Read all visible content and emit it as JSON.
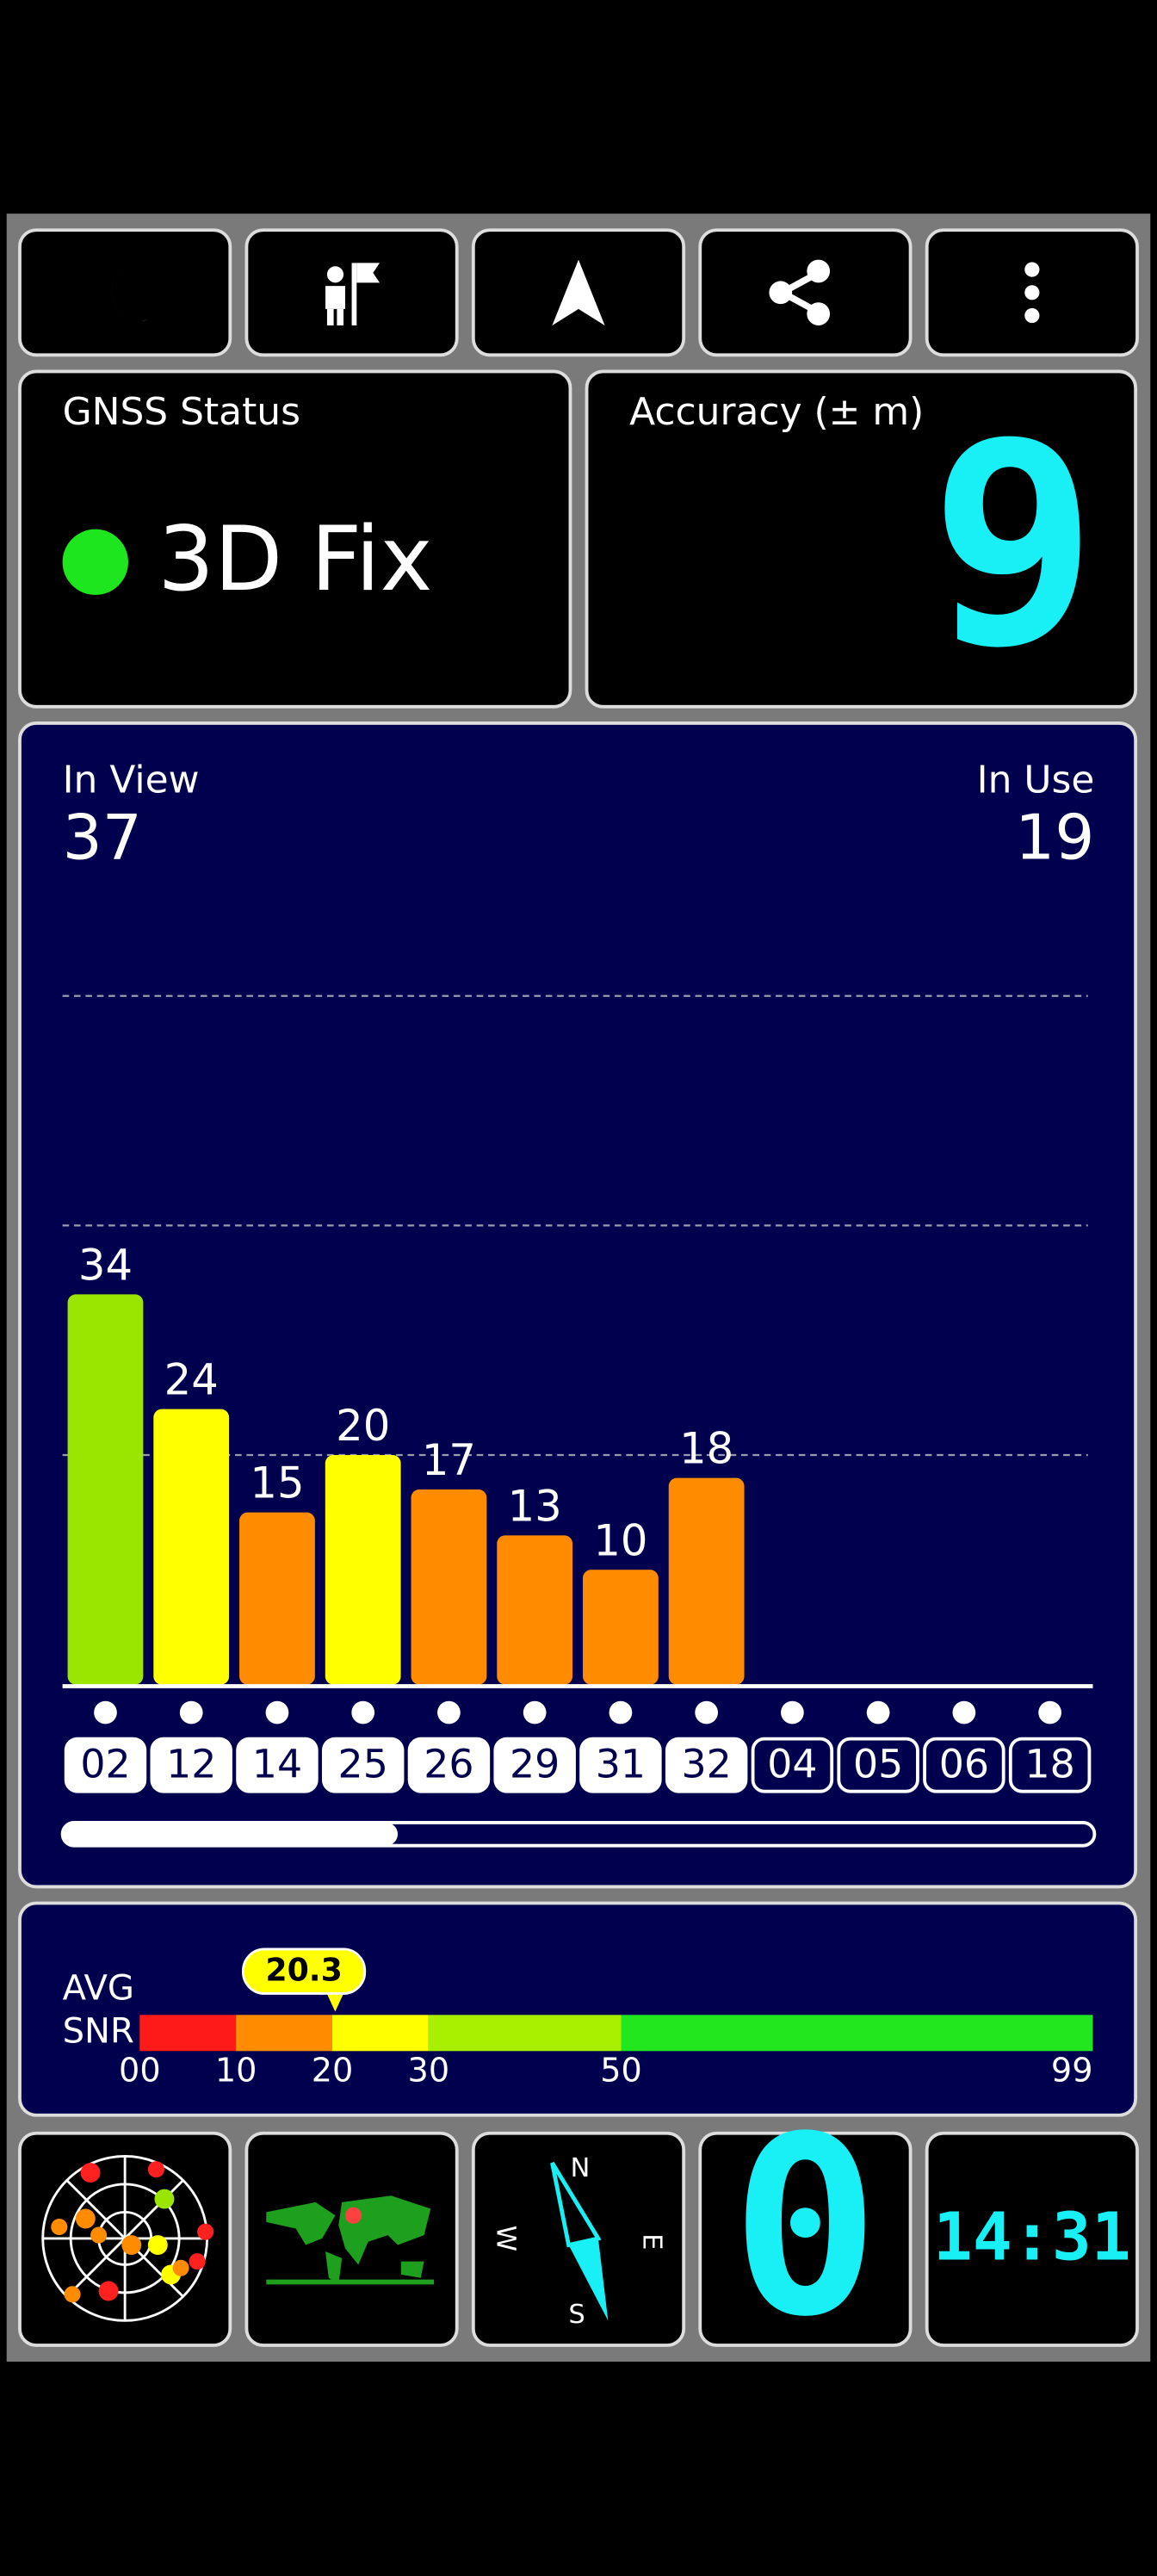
{
  "status": {
    "title": "GNSS Status",
    "fix": "3D Fix"
  },
  "accuracy": {
    "title": "Accuracy (± m)",
    "value": 9
  },
  "chart_data": {
    "type": "bar",
    "in_view_label": "In View",
    "in_view": 37,
    "in_use_label": "In Use",
    "in_use": 19,
    "categories": [
      "02",
      "12",
      "14",
      "25",
      "26",
      "29",
      "31",
      "32",
      "04",
      "05",
      "06",
      "18"
    ],
    "values": [
      34,
      24,
      15,
      20,
      17,
      13,
      10,
      18,
      0,
      0,
      0,
      0
    ],
    "colors": [
      "#9be600",
      "#ffff00",
      "#ff8c00",
      "#ffff00",
      "#ff8c00",
      "#ff8c00",
      "#ff8c00",
      "#ff8c00",
      "#ff1a1a",
      "#ff1a1a",
      "#ff1a1a",
      "#ff1a1a"
    ],
    "used": [
      true,
      true,
      true,
      true,
      true,
      true,
      true,
      true,
      false,
      false,
      false,
      false
    ],
    "ylim": [
      0,
      60
    ],
    "yticks": [
      20,
      40,
      60
    ],
    "grid": true
  },
  "snr": {
    "avg_label": "AVG",
    "snr_label": "SNR",
    "average": 20.3,
    "xlim": [
      0,
      99
    ],
    "xticks": [
      {
        "value": 0,
        "label": "00"
      },
      10,
      20,
      30,
      50,
      99
    ],
    "bands": [
      {
        "from": 0,
        "to": 10,
        "color": "#ff1a1a"
      },
      {
        "from": 10,
        "to": 20,
        "color": "#ff8c00"
      },
      {
        "from": 20,
        "to": 30,
        "color": "#ffff00"
      },
      {
        "from": 30,
        "to": 50,
        "color": "#a8f000"
      },
      {
        "from": 50,
        "to": 99,
        "color": "#22e61e"
      }
    ]
  },
  "compass": {
    "north": "N",
    "east": "E",
    "south": "S",
    "west": "W"
  },
  "speed": 0,
  "time": "14:31"
}
